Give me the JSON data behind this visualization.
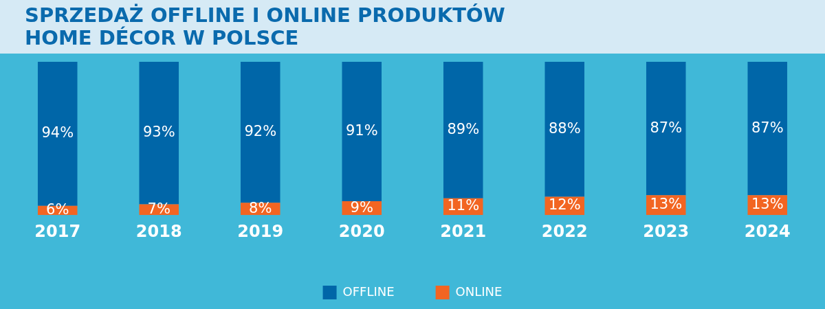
{
  "chart_data": {
    "type": "bar",
    "title": "SPRZEDAŻ OFFLINE I ONLINE PRODUKTÓW HOME DÉCOR W POLSCE",
    "categories": [
      "2017",
      "2018",
      "2019",
      "2020",
      "2021",
      "2022",
      "2023",
      "2024"
    ],
    "stacked": true,
    "ylim": [
      0,
      100
    ],
    "tick_labels": "x",
    "grid": false,
    "legend": "bottom",
    "series": [
      {
        "name": "ONLINE",
        "color": "#f26522",
        "values": [
          6,
          7,
          8,
          9,
          11,
          12,
          13,
          13
        ],
        "value_labels": [
          "6%",
          "7%",
          "8%",
          "9%",
          "11%",
          "12%",
          "13%",
          "13%"
        ]
      },
      {
        "name": "OFFLINE",
        "color": "#0066a8",
        "values": [
          94,
          93,
          92,
          91,
          89,
          88,
          87,
          87
        ],
        "value_labels": [
          "94%",
          "93%",
          "92%",
          "91%",
          "89%",
          "88%",
          "87%",
          "87%"
        ]
      }
    ]
  }
}
